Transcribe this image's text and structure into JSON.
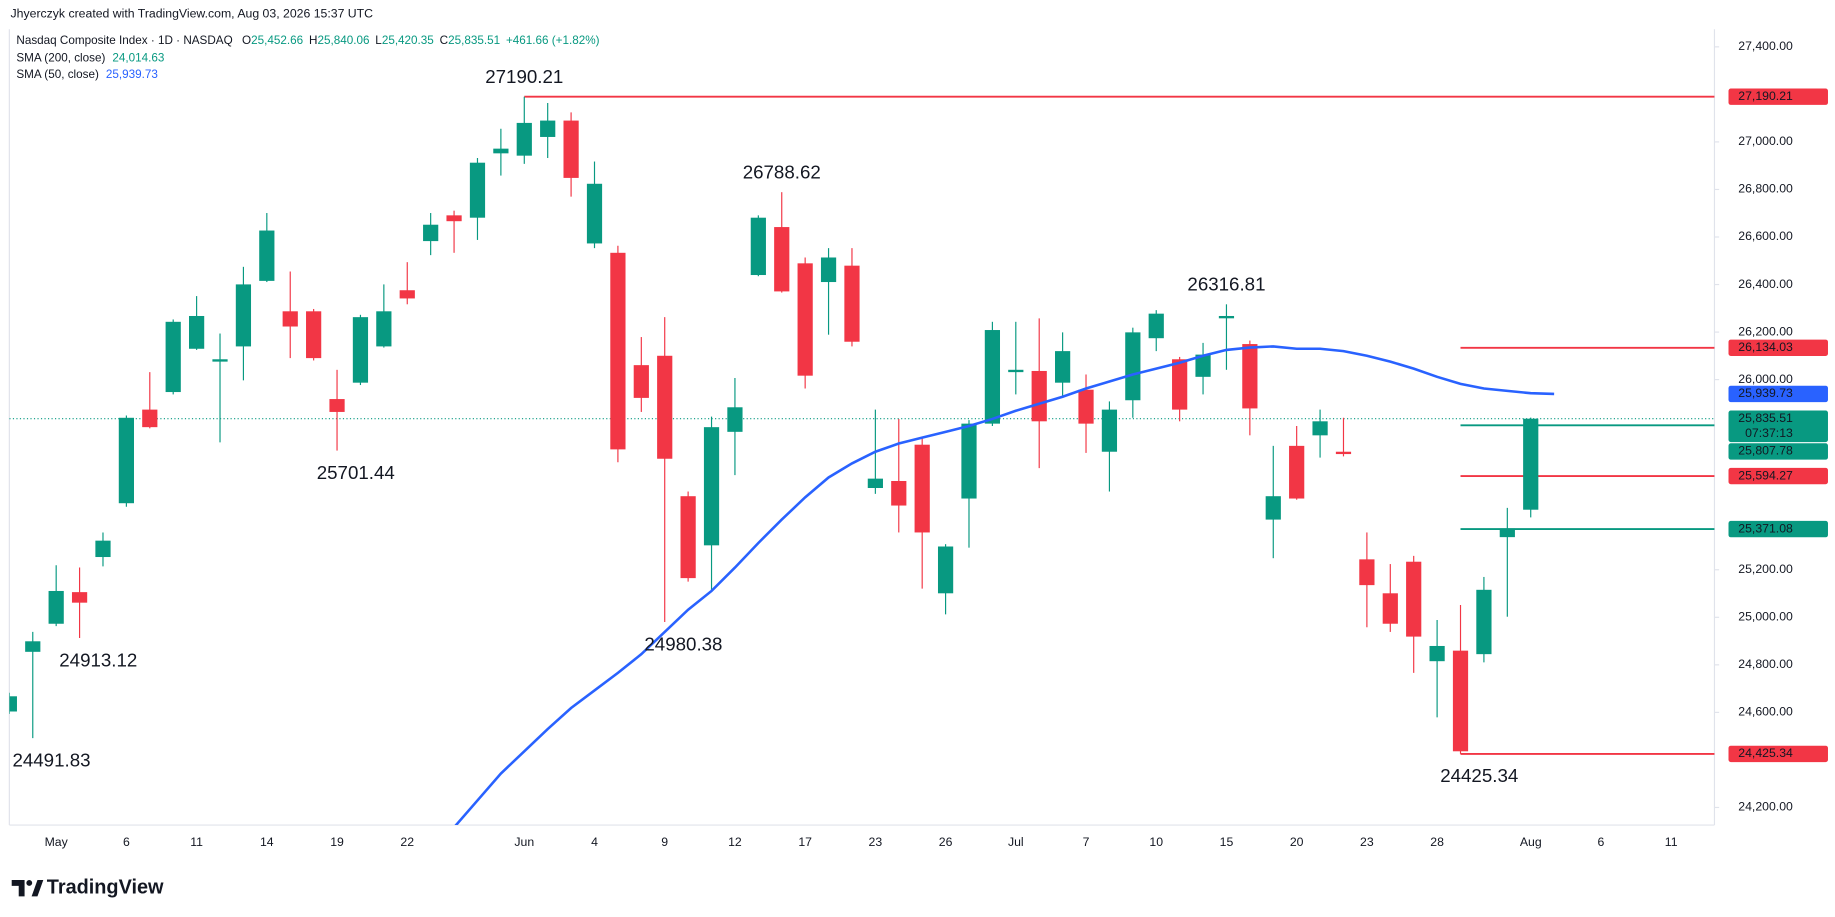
{
  "header": {
    "credit": "Jhyerczyk created with TradingView.com, Aug 03, 2026 15:37 UTC",
    "symbol": "Nasdaq Composite Index · 1D · NASDAQ",
    "ohlc": [
      {
        "key": "O",
        "value": "25,452.66"
      },
      {
        "key": "H",
        "value": "25,840.06"
      },
      {
        "key": "L",
        "value": "25,420.35"
      },
      {
        "key": "C",
        "value": "25,835.51"
      }
    ],
    "change": "+461.66 (+1.82%)"
  },
  "footer": {
    "logo": "TradingView"
  },
  "chart_data": {
    "type": "candlestick",
    "up_color": "#089981",
    "down_color": "#f23645",
    "categories": [
      null,
      null,
      "May",
      null,
      null,
      "6",
      null,
      null,
      "11",
      null,
      null,
      "14",
      null,
      null,
      "19",
      null,
      null,
      "22",
      null,
      null,
      null,
      null,
      "Jun",
      null,
      null,
      "4",
      null,
      null,
      "9",
      null,
      null,
      "12",
      null,
      null,
      "17",
      null,
      null,
      "23",
      null,
      null,
      "26",
      null,
      null,
      "Jul",
      null,
      null,
      "7",
      null,
      null,
      "10",
      null,
      null,
      "15",
      null,
      null,
      "20",
      null,
      null,
      "23",
      null,
      null,
      "28",
      null,
      null,
      null,
      "Aug",
      null,
      null,
      "6",
      null,
      null,
      "11",
      null
    ],
    "open": [
      24603.7,
      24854.8,
      24972.9,
      25105.9,
      25253.6,
      25480.0,
      25873.8,
      25947.7,
      26129.8,
      26075.7,
      26139.7,
      26415.4,
      26287.4,
      26287.4,
      25918.2,
      25987.1,
      26139.7,
      26376.0,
      26582.8,
      26691.1,
      26681.2,
      26952.0,
      26942.2,
      27020.9,
      27089.8,
      26572.9,
      26533.5,
      26060.9,
      26100.3,
      25509.5,
      25302.8,
      25780.3,
      26440.0,
      26641.8,
      26489.2,
      26410.5,
      26479.4,
      25544.0,
      25573.5,
      25726.2,
      25101.0,
      25499.7,
      25814.8,
      26031.5,
      26036.4,
      25987.1,
      25957.6,
      25696.6,
      25913.2,
      26174.2,
      26085.6,
      26011.7,
      26257.9,
      26149.6,
      25411.1,
      25721.3,
      25765.6,
      25696.6,
      25243.8,
      25101.0,
      25233.9,
      24815.4,
      24859.7,
      24845.0,
      25337.3,
      25452.66,
      null,
      null,
      null,
      null,
      null,
      null,
      null
    ],
    "high": [
      24682.5,
      24938.5,
      25219.1,
      25209.3,
      25357.0,
      25849.2,
      26031.5,
      26253.1,
      26351.4,
      26193.9,
      26474.5,
      26700.9,
      26454.8,
      26297.2,
      26041.2,
      26272.6,
      26400.6,
      26494.1,
      26700.9,
      26710.8,
      26932.3,
      27055.4,
      27190.21,
      27163.7,
      27124.3,
      26917.5,
      26563.1,
      26179.1,
      26262.8,
      25529.2,
      25844.3,
      26006.8,
      26691.1,
      26788.62,
      26513.8,
      26553.2,
      26553.2,
      25873.8,
      25834.5,
      25760.7,
      25307.7,
      25829.6,
      26243.2,
      26243.2,
      26257.9,
      26198.8,
      26021.6,
      25908.3,
      26218.5,
      26292.3,
      26095.4,
      26154.5,
      26316.81,
      26164.3,
      25721.3,
      25804.9,
      25873.8,
      25839.4,
      25357.0,
      25224.0,
      25258.5,
      24988.7,
      25051.7,
      25169.8,
      25460.4,
      25840.06,
      null,
      null,
      null,
      null,
      null,
      null,
      null
    ],
    "low": [
      24593.9,
      24491.83,
      24963.0,
      24913.12,
      25214.2,
      25465.3,
      25795.1,
      25937.8,
      26125.0,
      25736.0,
      25996.9,
      26410.5,
      26090.5,
      26080.6,
      25701.44,
      25977.2,
      26134.8,
      26316.9,
      26523.7,
      26533.5,
      26587.7,
      26858.4,
      26907.7,
      26932.3,
      26769.8,
      26553.2,
      25652.3,
      25864.0,
      24980.38,
      25150.1,
      25110.8,
      25598.2,
      26435.1,
      26366.2,
      25962.5,
      26189.0,
      26139.7,
      25519.4,
      25357.0,
      25120.6,
      25012.4,
      25293.0,
      25804.9,
      25937.8,
      25627.7,
      25923.1,
      25691.7,
      25529.2,
      25839.4,
      26119.9,
      25824.6,
      25937.8,
      26041.3,
      25765.6,
      25248.7,
      25494.8,
      25671.9,
      25677.0,
      24958.1,
      24938.5,
      24766.3,
      24579.1,
      24425.34,
      24810.5,
      25002.5,
      25420.35,
      null,
      null,
      null,
      null,
      null,
      null,
      null
    ],
    "close": [
      24667.7,
      24899.1,
      25110.8,
      25061.6,
      25322.5,
      25839.4,
      25800.0,
      26243.2,
      26267.7,
      26085.6,
      26400.6,
      26627.2,
      26223.4,
      26090.5,
      25864.0,
      26262.8,
      26287.4,
      26341.5,
      26651.7,
      26666.5,
      26912.6,
      26971.7,
      27080.0,
      27089.8,
      26848.6,
      26823.9,
      25706.5,
      25923.1,
      25667.1,
      25164.9,
      25800.0,
      25883.6,
      26681.2,
      26371.1,
      26016.6,
      26513.8,
      26159.4,
      25583.4,
      25470.2,
      25357.0,
      25297.9,
      25814.8,
      26208.6,
      26041.3,
      25824.6,
      26119.9,
      25814.8,
      25873.8,
      26198.8,
      26277.5,
      25873.8,
      26105.2,
      26267.7,
      25878.8,
      25509.5,
      25499.7,
      25824.6,
      25686.8,
      25135.4,
      24973.0,
      24918.8,
      24879.4,
      24436.3,
      25115.7,
      25373.85,
      25835.51,
      null,
      null,
      null,
      null,
      null,
      null,
      null
    ],
    "indicators": [
      {
        "name": "SMA (200, close)",
        "color": "#089981",
        "value_label": "24,014.63"
      },
      {
        "name": "SMA (50, close)",
        "color": "#2962ff",
        "value": 25939.73,
        "value_label": "25,939.73",
        "values": [
          null,
          null,
          null,
          null,
          null,
          null,
          null,
          null,
          null,
          null,
          null,
          null,
          null,
          null,
          null,
          null,
          null,
          null,
          null,
          24116.3,
          24229.6,
          24342.8,
          24436.3,
          24529.9,
          24618.5,
          24692.3,
          24766.2,
          24844.9,
          24938.5,
          25032.0,
          25110.8,
          25209.2,
          25312.6,
          25411.1,
          25504.6,
          25588.3,
          25647.4,
          25696.6,
          25731.1,
          25755.7,
          25780.3,
          25804.9,
          25834.5,
          25868.9,
          25898.5,
          25928.0,
          25962.5,
          25992.0,
          26021.5,
          26046.2,
          26070.8,
          26100.3,
          26124.9,
          26134.8,
          26139.7,
          26129.8,
          26129.8,
          26120.0,
          26100.3,
          26075.7,
          26046.2,
          26011.7,
          25982.2,
          25962.5,
          25952.6,
          25942.8,
          25939.73,
          null,
          null,
          null,
          null,
          null,
          null
        ]
      }
    ],
    "levels": [
      {
        "value": 27190.21,
        "label": "27,190.21",
        "color": "#f23645",
        "start": 22
      },
      {
        "value": 26134.03,
        "label": "26,134.03",
        "color": "#f23645",
        "start": 62
      },
      {
        "value": 25807.78,
        "label": "25,807.78",
        "color": "#089981",
        "start": 62
      },
      {
        "value": 25594.27,
        "label": "25,594.27",
        "color": "#f23645",
        "start": 62
      },
      {
        "value": 25371.08,
        "label": "25,371.08",
        "color": "#089981",
        "start": 62
      },
      {
        "value": 24425.34,
        "label": "24,425.34",
        "color": "#f23645",
        "start": 62
      }
    ],
    "last": {
      "label": "25,835.51",
      "countdown": "07:37:13"
    },
    "annotations": [
      {
        "value": 27190.21,
        "at": 22,
        "side": "above"
      },
      {
        "value": 26788.62,
        "at": 33,
        "side": "above"
      },
      {
        "value": 26316.81,
        "at": 52,
        "side": "above"
      },
      {
        "value": 25701.44,
        "at": 14,
        "side": "below"
      },
      {
        "value": 24913.12,
        "at": 3,
        "side": "below"
      },
      {
        "value": 24980.38,
        "at": 28,
        "side": "below"
      },
      {
        "value": 24491.83,
        "at": 1,
        "side": "below"
      },
      {
        "value": 24425.34,
        "at": 62,
        "side": "below"
      }
    ],
    "ylim": [
      24126,
      27474
    ],
    "yticks": [
      {
        "value": 24200,
        "label": "24,200.00"
      },
      {
        "value": 24600,
        "label": "24,600.00"
      },
      {
        "value": 24800,
        "label": "24,800.00"
      },
      {
        "value": 25000,
        "label": "25,000.00"
      },
      {
        "value": 25200,
        "label": "25,200.00"
      },
      {
        "value": 26000,
        "label": "26,000.00"
      },
      {
        "value": 26200,
        "label": "26,200.00"
      },
      {
        "value": 26400,
        "label": "26,400.00"
      },
      {
        "value": 26600,
        "label": "26,600.00"
      },
      {
        "value": 26800,
        "label": "26,800.00"
      },
      {
        "value": 27000,
        "label": "27,000.00"
      },
      {
        "value": 27400,
        "label": "27,400.00"
      }
    ],
    "grid": false
  }
}
